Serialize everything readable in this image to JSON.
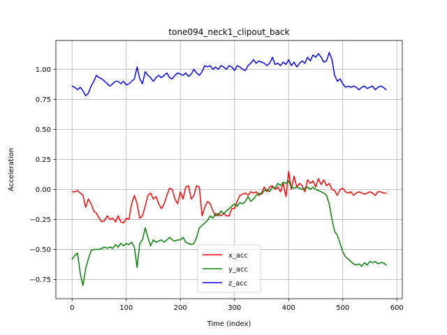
{
  "chart_data": {
    "type": "line",
    "title": "tone094_neck1_clipout_back",
    "xlabel": "Time (index)",
    "ylabel": "Acceleration",
    "xlim": [
      -30,
      610
    ],
    "ylim": [
      -0.91,
      1.24
    ],
    "xticks": [
      0,
      100,
      200,
      300,
      400,
      500,
      600
    ],
    "yticks": [
      -0.75,
      -0.5,
      -0.25,
      0.0,
      0.25,
      0.5,
      0.75,
      1.0
    ],
    "xtick_labels": [
      "0",
      "100",
      "200",
      "300",
      "400",
      "500",
      "600"
    ],
    "ytick_labels": [
      "−0.75",
      "−0.50",
      "−0.25",
      "0.00",
      "0.25",
      "0.50",
      "0.75",
      "1.00"
    ],
    "grid": true,
    "legend_position": "lower center",
    "series": [
      {
        "name": "x_acc",
        "color": "#ff0000",
        "x": [
          0,
          5,
          10,
          15,
          20,
          25,
          30,
          35,
          40,
          45,
          50,
          55,
          60,
          65,
          70,
          75,
          80,
          85,
          90,
          95,
          100,
          105,
          110,
          115,
          120,
          125,
          130,
          135,
          140,
          145,
          150,
          155,
          160,
          165,
          170,
          175,
          180,
          185,
          190,
          195,
          200,
          205,
          210,
          215,
          220,
          225,
          230,
          235,
          240,
          245,
          250,
          255,
          260,
          265,
          270,
          275,
          280,
          285,
          290,
          295,
          300,
          305,
          310,
          315,
          320,
          325,
          330,
          335,
          340,
          345,
          350,
          355,
          360,
          365,
          370,
          375,
          380,
          385,
          390,
          395,
          400,
          405,
          410,
          415,
          420,
          425,
          430,
          435,
          440,
          445,
          450,
          455,
          460,
          465,
          470,
          475,
          480,
          485,
          490,
          495,
          500,
          505,
          510,
          515,
          520,
          525,
          530,
          535,
          540,
          545,
          550,
          555,
          560,
          565,
          570,
          575,
          580
        ],
        "values": [
          -0.02,
          -0.02,
          -0.01,
          -0.03,
          -0.05,
          -0.15,
          -0.08,
          -0.12,
          -0.18,
          -0.2,
          -0.24,
          -0.27,
          -0.26,
          -0.22,
          -0.25,
          -0.24,
          -0.27,
          -0.22,
          -0.27,
          -0.28,
          -0.24,
          -0.25,
          -0.12,
          -0.05,
          -0.12,
          -0.24,
          -0.22,
          -0.14,
          -0.05,
          -0.03,
          -0.08,
          -0.06,
          -0.12,
          -0.16,
          -0.12,
          -0.05,
          0.01,
          0.0,
          -0.08,
          -0.12,
          -0.02,
          -0.08,
          0.02,
          0.03,
          -0.08,
          -0.05,
          0.03,
          0.02,
          -0.22,
          -0.15,
          -0.1,
          -0.12,
          -0.18,
          -0.22,
          -0.2,
          -0.22,
          -0.2,
          -0.22,
          -0.22,
          -0.16,
          -0.16,
          -0.1,
          -0.05,
          -0.04,
          -0.03,
          -0.05,
          -0.02,
          -0.03,
          -0.02,
          -0.05,
          -0.03,
          0.02,
          -0.02,
          0.02,
          0.03,
          0.0,
          0.02,
          -0.02,
          0.05,
          -0.06,
          0.15,
          0.0,
          0.11,
          0.02,
          0.05,
          0.03,
          -0.02,
          0.08,
          0.05,
          0.07,
          0.02,
          0.09,
          0.04,
          0.08,
          0.03,
          0.05,
          0.0,
          -0.01,
          -0.05,
          0.0,
          0.01,
          -0.02,
          -0.03,
          -0.02,
          -0.05,
          -0.03,
          -0.02,
          -0.03,
          -0.04,
          -0.03,
          -0.02,
          -0.03,
          -0.05,
          -0.02,
          -0.02,
          -0.03,
          -0.03
        ]
      },
      {
        "name": "y_acc",
        "color": "#008000",
        "x": [
          0,
          5,
          10,
          15,
          20,
          25,
          30,
          35,
          40,
          45,
          50,
          55,
          60,
          65,
          70,
          75,
          80,
          85,
          90,
          95,
          100,
          105,
          110,
          115,
          120,
          125,
          130,
          135,
          140,
          145,
          150,
          155,
          160,
          165,
          170,
          175,
          180,
          185,
          190,
          195,
          200,
          205,
          210,
          215,
          220,
          225,
          230,
          235,
          240,
          245,
          250,
          255,
          260,
          265,
          270,
          275,
          280,
          285,
          290,
          295,
          300,
          305,
          310,
          315,
          320,
          325,
          330,
          335,
          340,
          345,
          350,
          355,
          360,
          365,
          370,
          375,
          380,
          385,
          390,
          395,
          400,
          405,
          410,
          415,
          420,
          425,
          430,
          435,
          440,
          445,
          450,
          455,
          460,
          465,
          470,
          475,
          480,
          485,
          490,
          495,
          500,
          505,
          510,
          515,
          520,
          525,
          530,
          535,
          540,
          545,
          550,
          555,
          560,
          565,
          570,
          575,
          580
        ],
        "values": [
          -0.58,
          -0.55,
          -0.53,
          -0.7,
          -0.8,
          -0.66,
          -0.58,
          -0.51,
          -0.5,
          -0.5,
          -0.5,
          -0.49,
          -0.48,
          -0.49,
          -0.48,
          -0.49,
          -0.46,
          -0.48,
          -0.45,
          -0.47,
          -0.45,
          -0.46,
          -0.44,
          -0.48,
          -0.65,
          -0.45,
          -0.42,
          -0.32,
          -0.4,
          -0.47,
          -0.42,
          -0.44,
          -0.43,
          -0.42,
          -0.44,
          -0.42,
          -0.4,
          -0.42,
          -0.43,
          -0.42,
          -0.42,
          -0.4,
          -0.44,
          -0.45,
          -0.46,
          -0.45,
          -0.4,
          -0.32,
          -0.3,
          -0.28,
          -0.26,
          -0.22,
          -0.24,
          -0.2,
          -0.22,
          -0.18,
          -0.2,
          -0.18,
          -0.16,
          -0.14,
          -0.12,
          -0.14,
          -0.11,
          -0.12,
          -0.1,
          -0.06,
          -0.1,
          -0.08,
          -0.05,
          -0.03,
          -0.04,
          -0.01,
          0.0,
          -0.02,
          0.02,
          0.01,
          0.05,
          0.03,
          0.06,
          0.05,
          0.07,
          0.02,
          0.01,
          0.02,
          0.01,
          0.0,
          0.01,
          0.02,
          0.0,
          0.02,
          0.0,
          -0.01,
          -0.02,
          -0.03,
          -0.05,
          -0.12,
          -0.25,
          -0.35,
          -0.38,
          -0.45,
          -0.52,
          -0.56,
          -0.58,
          -0.6,
          -0.62,
          -0.63,
          -0.62,
          -0.64,
          -0.61,
          -0.63,
          -0.6,
          -0.61,
          -0.6,
          -0.62,
          -0.61,
          -0.61,
          -0.63
        ]
      },
      {
        "name": "z_acc",
        "color": "#0000ff",
        "x": [
          0,
          5,
          10,
          15,
          20,
          25,
          30,
          35,
          40,
          45,
          50,
          55,
          60,
          65,
          70,
          75,
          80,
          85,
          90,
          95,
          100,
          105,
          110,
          115,
          120,
          125,
          130,
          135,
          140,
          145,
          150,
          155,
          160,
          165,
          170,
          175,
          180,
          185,
          190,
          195,
          200,
          205,
          210,
          215,
          220,
          225,
          230,
          235,
          240,
          245,
          250,
          255,
          260,
          265,
          270,
          275,
          280,
          285,
          290,
          295,
          300,
          305,
          310,
          315,
          320,
          325,
          330,
          335,
          340,
          345,
          350,
          355,
          360,
          365,
          370,
          375,
          380,
          385,
          390,
          395,
          400,
          405,
          410,
          415,
          420,
          425,
          430,
          435,
          440,
          445,
          450,
          455,
          460,
          465,
          470,
          475,
          480,
          485,
          490,
          495,
          500,
          505,
          510,
          515,
          520,
          525,
          530,
          535,
          540,
          545,
          550,
          555,
          560,
          565,
          570,
          575,
          580
        ],
        "values": [
          0.86,
          0.85,
          0.83,
          0.85,
          0.82,
          0.78,
          0.8,
          0.86,
          0.9,
          0.95,
          0.93,
          0.92,
          0.9,
          0.88,
          0.86,
          0.88,
          0.9,
          0.9,
          0.88,
          0.9,
          0.87,
          0.88,
          0.9,
          0.92,
          1.02,
          0.92,
          0.88,
          0.98,
          0.95,
          0.93,
          0.9,
          0.93,
          0.95,
          0.93,
          0.95,
          0.97,
          0.93,
          0.92,
          0.95,
          0.97,
          0.96,
          0.95,
          0.97,
          0.94,
          0.96,
          1.0,
          0.97,
          0.95,
          0.98,
          1.03,
          1.02,
          1.03,
          1.0,
          1.02,
          1.0,
          1.03,
          1.02,
          1.0,
          1.03,
          1.02,
          0.99,
          1.03,
          1.02,
          1.0,
          0.99,
          1.03,
          1.05,
          1.08,
          1.05,
          1.07,
          1.06,
          1.05,
          1.03,
          1.05,
          1.1,
          1.04,
          1.05,
          1.03,
          1.06,
          1.04,
          1.08,
          1.03,
          1.06,
          1.02,
          1.05,
          1.07,
          1.05,
          1.1,
          1.07,
          1.12,
          1.1,
          1.13,
          1.1,
          1.06,
          1.07,
          1.14,
          1.08,
          0.95,
          0.9,
          0.92,
          0.88,
          0.85,
          0.86,
          0.85,
          0.86,
          0.85,
          0.83,
          0.85,
          0.86,
          0.84,
          0.85,
          0.86,
          0.83,
          0.85,
          0.86,
          0.85,
          0.83
        ]
      }
    ]
  }
}
